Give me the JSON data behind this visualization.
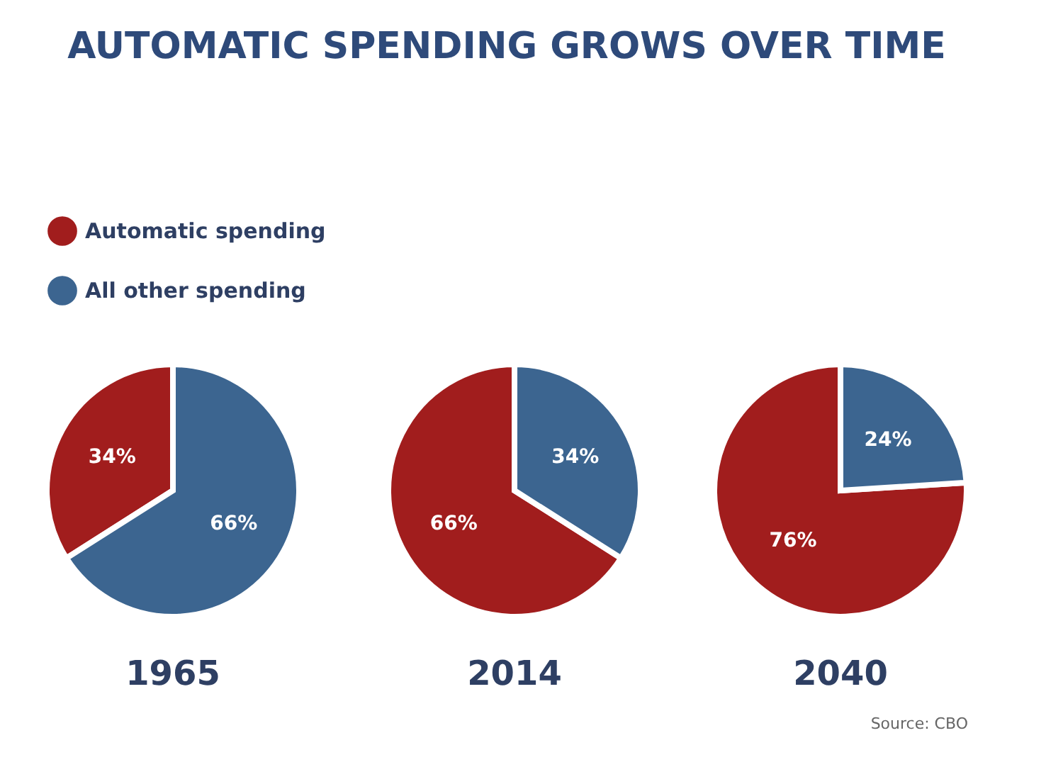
{
  "chart_data": [
    {
      "type": "pie",
      "title": "AUTOMATIC SPENDING GROWS OVER TIME",
      "xlabel": "1965",
      "legend": "top left",
      "categories": [
        "Automatic spending",
        "All other spending"
      ],
      "values": [
        34,
        66
      ],
      "colors": [
        "#a11d1d",
        "#3c6590"
      ],
      "value_labels": [
        "34%",
        "66%"
      ]
    },
    {
      "type": "pie",
      "xlabel": "2014",
      "categories": [
        null,
        null
      ],
      "values": [
        66,
        34
      ],
      "colors": [
        "#a11d1d",
        "#3c6590"
      ],
      "value_labels": [
        "66%",
        "34%"
      ]
    },
    {
      "type": "pie",
      "xlabel": "2040",
      "categories": [
        null,
        null
      ],
      "values": [
        76,
        24
      ],
      "colors": [
        "#a11d1d",
        "#3c6590"
      ],
      "value_labels": [
        "76%",
        "24%"
      ],
      "annotations": [
        "Source: CBO"
      ]
    }
  ]
}
